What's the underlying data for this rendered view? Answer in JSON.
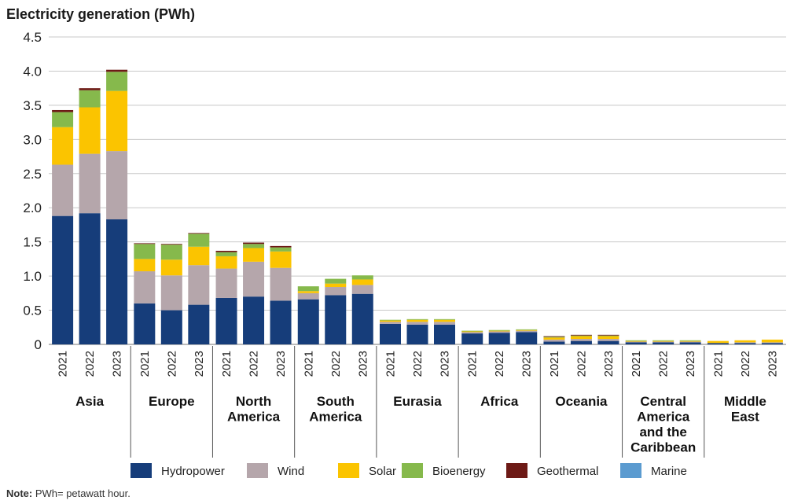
{
  "chart_data": {
    "type": "bar",
    "stacked": true,
    "title": "Electricity generation (PWh)",
    "ylim": [
      0,
      4.5
    ],
    "yticks": [
      "0",
      "0.5",
      "1.0",
      "1.5",
      "2.0",
      "2.5",
      "3.0",
      "3.5",
      "4.0",
      "4.5"
    ],
    "grid": true,
    "legend_position": "bottom",
    "groups": [
      {
        "label": [
          "Asia"
        ],
        "years": [
          "2021",
          "2022",
          "2023"
        ]
      },
      {
        "label": [
          "Europe"
        ],
        "years": [
          "2021",
          "2022",
          "2023"
        ]
      },
      {
        "label": [
          "North",
          "America"
        ],
        "years": [
          "2021",
          "2022",
          "2023"
        ]
      },
      {
        "label": [
          "South",
          "America"
        ],
        "years": [
          "2021",
          "2022",
          "2023"
        ]
      },
      {
        "label": [
          "Eurasia"
        ],
        "years": [
          "2021",
          "2022",
          "2023"
        ]
      },
      {
        "label": [
          "Africa"
        ],
        "years": [
          "2021",
          "2022",
          "2023"
        ]
      },
      {
        "label": [
          "Oceania"
        ],
        "years": [
          "2021",
          "2022",
          "2023"
        ]
      },
      {
        "label": [
          "Central",
          "America",
          "and the",
          "Caribbean"
        ],
        "years": [
          "2021",
          "2022",
          "2023"
        ]
      },
      {
        "label": [
          "Middle",
          "East"
        ],
        "years": [
          "2021",
          "2022",
          "2023"
        ]
      }
    ],
    "series": [
      {
        "name": "Hydropower",
        "color": "#163d7a",
        "values": [
          1.88,
          1.92,
          1.83,
          0.6,
          0.5,
          0.58,
          0.68,
          0.7,
          0.64,
          0.66,
          0.72,
          0.74,
          0.3,
          0.29,
          0.29,
          0.16,
          0.17,
          0.18,
          0.04,
          0.05,
          0.05,
          0.03,
          0.03,
          0.03,
          0.02,
          0.02,
          0.02
        ]
      },
      {
        "name": "Wind",
        "color": "#b5a6ab",
        "values": [
          0.75,
          0.87,
          1.0,
          0.47,
          0.51,
          0.58,
          0.43,
          0.51,
          0.48,
          0.09,
          0.12,
          0.13,
          0.03,
          0.04,
          0.04,
          0.02,
          0.02,
          0.02,
          0.03,
          0.03,
          0.03,
          0.01,
          0.01,
          0.01,
          0.0,
          0.01,
          0.01
        ]
      },
      {
        "name": "Solar",
        "color": "#fbc400",
        "values": [
          0.55,
          0.68,
          0.88,
          0.18,
          0.23,
          0.27,
          0.18,
          0.2,
          0.24,
          0.03,
          0.05,
          0.08,
          0.02,
          0.03,
          0.03,
          0.01,
          0.01,
          0.01,
          0.03,
          0.04,
          0.04,
          0.01,
          0.01,
          0.01,
          0.03,
          0.03,
          0.04
        ]
      },
      {
        "name": "Bioenergy",
        "color": "#86b94c",
        "values": [
          0.22,
          0.25,
          0.28,
          0.22,
          0.22,
          0.19,
          0.06,
          0.06,
          0.06,
          0.07,
          0.07,
          0.06,
          0.01,
          0.01,
          0.01,
          0.01,
          0.01,
          0.01,
          0.01,
          0.01,
          0.01,
          0.01,
          0.01,
          0.01,
          0.0,
          0.0,
          0.0
        ]
      },
      {
        "name": "Geothermal",
        "color": "#6d1a16",
        "values": [
          0.03,
          0.03,
          0.03,
          0.01,
          0.01,
          0.01,
          0.02,
          0.02,
          0.02,
          0.0,
          0.0,
          0.0,
          0.0,
          0.0,
          0.0,
          0.0,
          0.0,
          0.0,
          0.01,
          0.01,
          0.01,
          0.0,
          0.0,
          0.0,
          0.0,
          0.0,
          0.0
        ]
      },
      {
        "name": "Marine",
        "color": "#5b9bd0",
        "values": [
          0.0,
          0.0,
          0.0,
          0.0,
          0.0,
          0.0,
          0.0,
          0.0,
          0.0,
          0.0,
          0.0,
          0.0,
          0.0,
          0.0,
          0.0,
          0.0,
          0.0,
          0.0,
          0.0,
          0.0,
          0.0,
          0.0,
          0.0,
          0.0,
          0.0,
          0.0,
          0.0
        ]
      }
    ]
  },
  "note": {
    "label": "Note:",
    "text": " PWh= petawatt hour."
  }
}
